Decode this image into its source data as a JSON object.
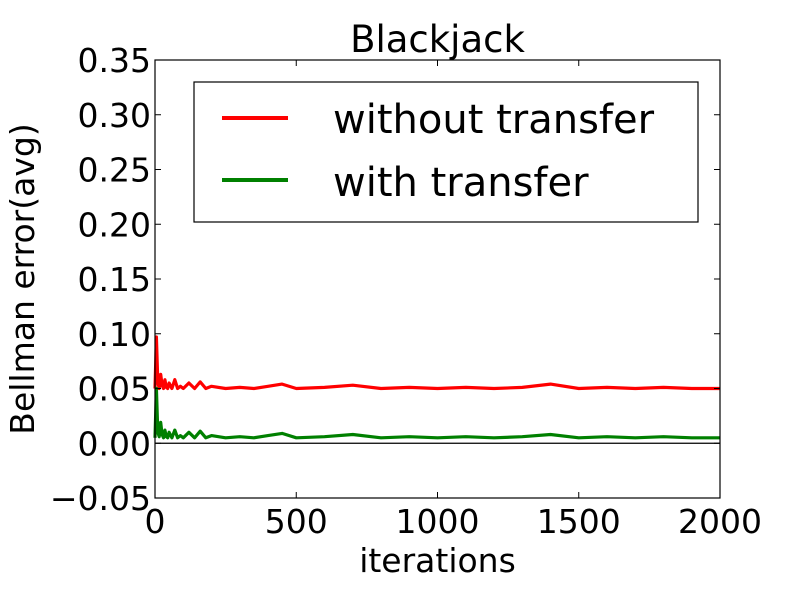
{
  "chart_data": {
    "type": "line",
    "title": "Blackjack",
    "xlabel": "iterations",
    "ylabel": "Bellman error(avg)",
    "xlim": [
      0,
      2000
    ],
    "ylim": [
      -0.05,
      0.35
    ],
    "xticks": [
      0,
      500,
      1000,
      1500,
      2000
    ],
    "xtick_labels": [
      "0",
      "500",
      "1000",
      "1500",
      "2000"
    ],
    "yticks": [
      -0.05,
      0.0,
      0.05,
      0.1,
      0.15,
      0.2,
      0.25,
      0.3,
      0.35
    ],
    "ytick_labels": [
      "−0.05",
      "0.00",
      "0.05",
      "0.10",
      "0.15",
      "0.20",
      "0.25",
      "0.30",
      "0.35"
    ],
    "grid": false,
    "legend_position": "top-right",
    "reference_line_y": 0.0,
    "series": [
      {
        "name": "without transfer",
        "color": "#ff0000",
        "x": [
          0,
          5,
          10,
          15,
          20,
          25,
          30,
          35,
          40,
          45,
          50,
          60,
          70,
          80,
          90,
          100,
          120,
          140,
          160,
          180,
          200,
          250,
          300,
          350,
          400,
          450,
          500,
          600,
          700,
          800,
          900,
          1000,
          1100,
          1200,
          1300,
          1400,
          1500,
          1600,
          1700,
          1800,
          1900,
          2000
        ],
        "y": [
          0.05,
          0.097,
          0.056,
          0.05,
          0.063,
          0.053,
          0.05,
          0.058,
          0.051,
          0.05,
          0.055,
          0.05,
          0.058,
          0.05,
          0.052,
          0.05,
          0.055,
          0.05,
          0.056,
          0.05,
          0.052,
          0.05,
          0.051,
          0.05,
          0.052,
          0.054,
          0.05,
          0.051,
          0.053,
          0.05,
          0.051,
          0.05,
          0.051,
          0.05,
          0.051,
          0.054,
          0.05,
          0.051,
          0.05,
          0.051,
          0.05,
          0.05
        ]
      },
      {
        "name": "with transfer",
        "color": "#008000",
        "x": [
          0,
          5,
          10,
          15,
          20,
          25,
          30,
          35,
          40,
          45,
          50,
          60,
          70,
          80,
          90,
          100,
          120,
          140,
          160,
          180,
          200,
          250,
          300,
          350,
          400,
          450,
          500,
          600,
          700,
          800,
          900,
          1000,
          1100,
          1200,
          1300,
          1400,
          1500,
          1600,
          1700,
          1800,
          1900,
          2000
        ],
        "y": [
          0.005,
          0.05,
          0.01,
          0.006,
          0.019,
          0.008,
          0.005,
          0.012,
          0.006,
          0.005,
          0.01,
          0.005,
          0.012,
          0.005,
          0.007,
          0.005,
          0.01,
          0.005,
          0.011,
          0.005,
          0.007,
          0.005,
          0.006,
          0.005,
          0.007,
          0.009,
          0.005,
          0.006,
          0.008,
          0.005,
          0.006,
          0.005,
          0.006,
          0.005,
          0.006,
          0.008,
          0.005,
          0.006,
          0.005,
          0.006,
          0.005,
          0.005
        ]
      }
    ]
  }
}
